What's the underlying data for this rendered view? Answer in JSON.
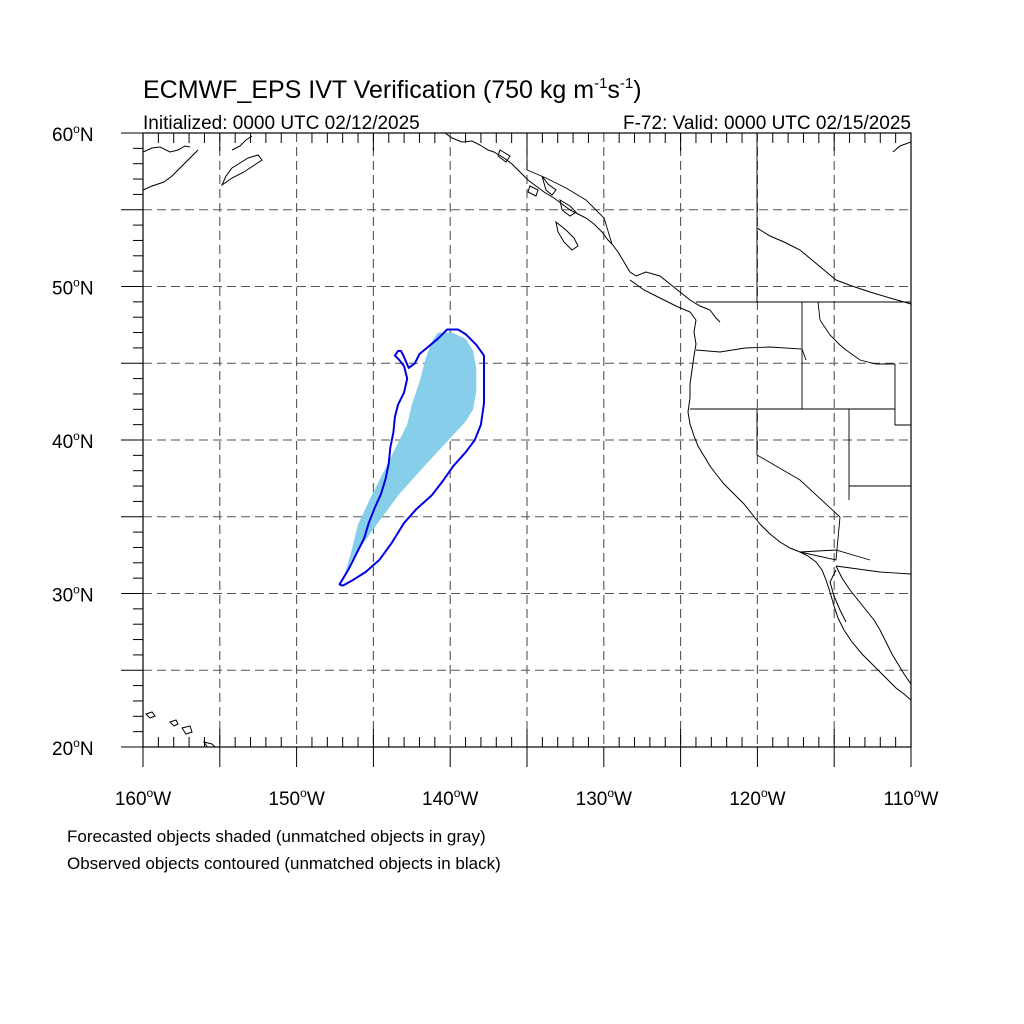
{
  "title": {
    "main": "ECMWF_EPS IVT Verification (750 kg m",
    "sup1": "-1",
    "mid": "s",
    "sup2": "-1",
    "end": ")"
  },
  "initialized": "Initialized: 0000 UTC 02/12/2025",
  "valid": "F-72: Valid: 0000 UTC 02/15/2025",
  "map": {
    "lon_range": [
      -160,
      -110
    ],
    "lat_range": [
      20,
      60
    ],
    "grid_lon_step": 5,
    "grid_lat_step": 5,
    "lat_labels": [
      {
        "value": 60,
        "num": "60",
        "hemi": "N"
      },
      {
        "value": 50,
        "num": "50",
        "hemi": "N"
      },
      {
        "value": 40,
        "num": "40",
        "hemi": "N"
      },
      {
        "value": 30,
        "num": "30",
        "hemi": "N"
      },
      {
        "value": 20,
        "num": "20",
        "hemi": "N"
      }
    ],
    "lon_labels": [
      {
        "value": -160,
        "num": "160",
        "hemi": "W"
      },
      {
        "value": -150,
        "num": "150",
        "hemi": "W"
      },
      {
        "value": -140,
        "num": "140",
        "hemi": "W"
      },
      {
        "value": -130,
        "num": "130",
        "hemi": "W"
      },
      {
        "value": -120,
        "num": "120",
        "hemi": "W"
      },
      {
        "value": -110,
        "num": "110",
        "hemi": "W"
      }
    ],
    "forecast_color": "#87ceeb",
    "observed_color": "#0000e6",
    "forecast_object": [
      [
        -147.0,
        30.8
      ],
      [
        -146.5,
        32.5
      ],
      [
        -146.0,
        34.5
      ],
      [
        -145.2,
        36.2
      ],
      [
        -144.3,
        38.0
      ],
      [
        -143.5,
        39.6
      ],
      [
        -142.8,
        41.0
      ],
      [
        -142.5,
        42.3
      ],
      [
        -142.0,
        43.8
      ],
      [
        -141.6,
        45.3
      ],
      [
        -141.2,
        46.4
      ],
      [
        -140.8,
        47.0
      ],
      [
        -139.9,
        47.0
      ],
      [
        -139.0,
        46.6
      ],
      [
        -138.5,
        45.8
      ],
      [
        -138.3,
        44.6
      ],
      [
        -138.3,
        43.2
      ],
      [
        -138.5,
        42.0
      ],
      [
        -139.0,
        41.2
      ],
      [
        -140.3,
        39.8
      ],
      [
        -141.5,
        38.5
      ],
      [
        -143.3,
        36.5
      ],
      [
        -145.0,
        34.2
      ],
      [
        -146.4,
        32.2
      ],
      [
        -147.0,
        30.8
      ]
    ],
    "observed_object": [
      [
        -147.0,
        30.5
      ],
      [
        -146.3,
        30.9
      ],
      [
        -145.5,
        31.4
      ],
      [
        -144.6,
        32.2
      ],
      [
        -143.8,
        33.3
      ],
      [
        -143.0,
        34.6
      ],
      [
        -142.2,
        35.5
      ],
      [
        -141.2,
        36.4
      ],
      [
        -140.5,
        37.3
      ],
      [
        -139.8,
        38.3
      ],
      [
        -139.0,
        39.2
      ],
      [
        -138.4,
        40.0
      ],
      [
        -138.0,
        41.0
      ],
      [
        -137.8,
        42.4
      ],
      [
        -137.8,
        44.2
      ],
      [
        -137.8,
        45.5
      ],
      [
        -138.3,
        46.2
      ],
      [
        -139.0,
        46.9
      ],
      [
        -139.5,
        47.2
      ],
      [
        -140.2,
        47.2
      ],
      [
        -140.8,
        46.6
      ],
      [
        -141.4,
        46.1
      ],
      [
        -142.0,
        45.6
      ],
      [
        -142.3,
        45.0
      ],
      [
        -142.7,
        44.7
      ],
      [
        -143.0,
        45.4
      ],
      [
        -143.2,
        45.8
      ],
      [
        -143.4,
        45.8
      ],
      [
        -143.6,
        45.5
      ],
      [
        -143.3,
        45.2
      ],
      [
        -143.0,
        44.8
      ],
      [
        -142.8,
        44.0
      ],
      [
        -143.0,
        43.1
      ],
      [
        -143.4,
        42.3
      ],
      [
        -143.6,
        41.5
      ],
      [
        -143.7,
        40.5
      ],
      [
        -143.9,
        39.5
      ],
      [
        -144.0,
        38.5
      ],
      [
        -144.2,
        37.5
      ],
      [
        -144.5,
        36.5
      ],
      [
        -144.9,
        35.6
      ],
      [
        -145.3,
        34.6
      ],
      [
        -145.6,
        33.6
      ],
      [
        -146.1,
        32.6
      ],
      [
        -146.6,
        31.6
      ],
      [
        -147.2,
        30.6
      ],
      [
        -147.0,
        30.5
      ]
    ]
  },
  "captions": {
    "line1": "Forecasted objects shaded (unmatched objects in gray)",
    "line2": "Observed objects contoured (unmatched objects in black)"
  }
}
